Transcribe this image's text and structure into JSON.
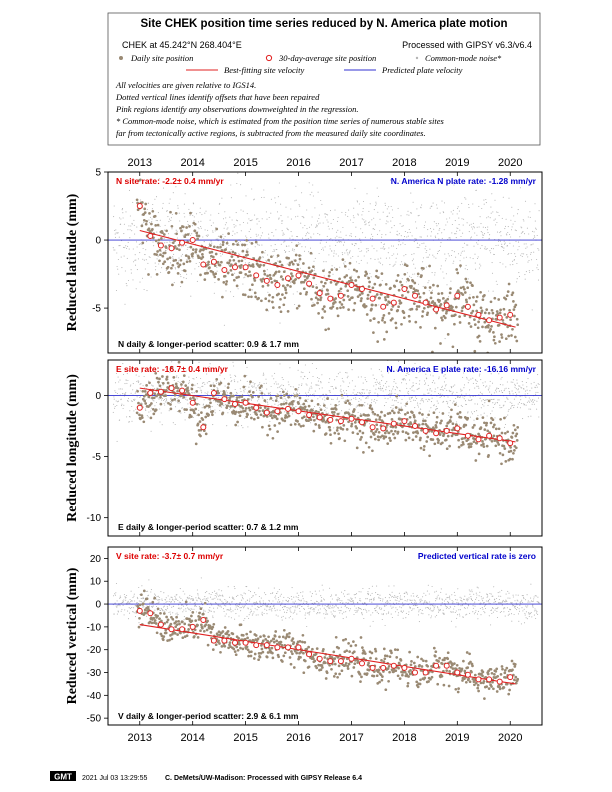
{
  "header": {
    "title": "Site CHEK position time series reduced by N. America plate motion",
    "site_coords": "CHEK at 45.242°N 268.404°E",
    "processing": "Processed with GIPSY v6.3/v6.4",
    "legend": {
      "daily": "Daily site position",
      "avg30": "30-day-average site position",
      "cmn": "Common-mode noise*",
      "fit": "Best-fitting site velocity",
      "pred": "Predicted plate velocity"
    },
    "notes": [
      "All velocities are given relative to IGS14.",
      "Dotted vertical lines identify offsets that have been repaired",
      "Pink regions identify any observations downweighted in the regression.",
      "* Common-mode noise, which is estimated from the position time series of numerous stable sites",
      "far from tectonically active regions, is subtracted from the measured daily site coordinates."
    ]
  },
  "colors": {
    "daily": "#9a8a74",
    "cmn": "#b4b4b4",
    "fit": "#e02020",
    "pred": "#3030d0",
    "site_rate_text": "#dd0000",
    "plate_rate_text": "#0000cc"
  },
  "footer": {
    "logo": "GMT",
    "timestamp": "2021 Jul 03 13:29:55",
    "credit": "C. DeMets/UW-Madison: Processed with GIPSY Release 6.4"
  },
  "chart_data": [
    {
      "type": "scatter",
      "component": "north",
      "ylabel": "Reduced latitude (mm)",
      "xlim": [
        2012.4,
        2020.6
      ],
      "ylim": [
        -8.3,
        5
      ],
      "yticks": [
        -5,
        0,
        5
      ],
      "xticks": [
        2013,
        2014,
        2015,
        2016,
        2017,
        2018,
        2019,
        2020
      ],
      "site_rate_label": "N site rate:  -2.2± 0.4 mm/yr",
      "plate_rate_label": "N. America N plate rate:  -1.28 mm/yr",
      "scatter_label": "N daily & longer-period scatter:   0.9 &   1.7 mm",
      "fit_line": {
        "x": [
          2013.0,
          2020.1
        ],
        "y": [
          0.7,
          -6.4
        ]
      },
      "predicted_line_y": 0,
      "avg30": {
        "x": [
          2013.0,
          2013.2,
          2013.4,
          2013.6,
          2013.8,
          2014.0,
          2014.2,
          2014.4,
          2014.6,
          2014.8,
          2015.0,
          2015.2,
          2015.4,
          2015.6,
          2015.8,
          2016.0,
          2016.2,
          2016.4,
          2016.6,
          2016.8,
          2017.0,
          2017.2,
          2017.4,
          2017.6,
          2017.8,
          2018.0,
          2018.2,
          2018.4,
          2018.6,
          2018.8,
          2019.0,
          2019.2,
          2019.4,
          2019.6,
          2019.8,
          2020.0
        ],
        "y": [
          2.5,
          0.3,
          -0.4,
          -0.6,
          -0.2,
          0.0,
          -1.8,
          -1.6,
          -2.2,
          -2.0,
          -2.0,
          -2.6,
          -3.0,
          -3.3,
          -2.8,
          -2.6,
          -3.2,
          -3.9,
          -4.3,
          -4.1,
          -3.3,
          -3.6,
          -4.3,
          -4.9,
          -4.6,
          -3.6,
          -4.1,
          -4.6,
          -5.1,
          -4.8,
          -4.1,
          -4.9,
          -5.5,
          -5.9,
          -5.7,
          -5.5
        ]
      },
      "daily_spread": 1.1,
      "cmn_spread": 1.8
    },
    {
      "type": "scatter",
      "component": "east",
      "ylabel": "Reduced longitude (mm)",
      "xlim": [
        2012.4,
        2020.6
      ],
      "ylim": [
        -11.5,
        2.9
      ],
      "yticks": [
        -10,
        -5,
        0
      ],
      "xticks": [
        2013,
        2014,
        2015,
        2016,
        2017,
        2018,
        2019,
        2020
      ],
      "site_rate_label": "E site rate:  -16.7± 0.4 mm/yr",
      "plate_rate_label": "N. America E plate rate:  -16.16 mm/yr",
      "scatter_label": "E daily & longer-period scatter:   0.7 &   1.2 mm",
      "fit_line": {
        "x": [
          2013.0,
          2020.1
        ],
        "y": [
          0.6,
          -3.8
        ]
      },
      "predicted_line_y": 0,
      "avg30": {
        "x": [
          2013.0,
          2013.2,
          2013.4,
          2013.6,
          2013.8,
          2014.0,
          2014.2,
          2014.4,
          2014.6,
          2014.8,
          2015.0,
          2015.2,
          2015.4,
          2015.6,
          2015.8,
          2016.0,
          2016.2,
          2016.4,
          2016.6,
          2016.8,
          2017.0,
          2017.2,
          2017.4,
          2017.6,
          2017.8,
          2018.0,
          2018.2,
          2018.4,
          2018.6,
          2018.8,
          2019.0,
          2019.2,
          2019.4,
          2019.6,
          2019.8,
          2020.0
        ],
        "y": [
          -1.0,
          0.2,
          0.3,
          0.6,
          0.4,
          -0.6,
          -2.6,
          0.2,
          -0.3,
          -0.7,
          -0.6,
          -1.0,
          -1.4,
          -1.3,
          -1.1,
          -1.3,
          -1.6,
          -1.8,
          -2.0,
          -2.1,
          -1.9,
          -2.2,
          -2.6,
          -2.7,
          -2.3,
          -2.1,
          -2.5,
          -2.9,
          -3.1,
          -2.9,
          -2.7,
          -3.3,
          -3.6,
          -3.3,
          -3.5,
          -3.9
        ]
      },
      "daily_spread": 0.8,
      "cmn_spread": 1.0
    },
    {
      "type": "scatter",
      "component": "vertical",
      "ylabel": "Reduced vertical (mm)",
      "xlim": [
        2012.4,
        2020.6
      ],
      "ylim": [
        -53,
        25
      ],
      "yticks": [
        -50,
        -40,
        -30,
        -20,
        -10,
        0,
        10,
        20
      ],
      "xticks": [
        2013,
        2014,
        2015,
        2016,
        2017,
        2018,
        2019,
        2020
      ],
      "site_rate_label": "V site rate:  -3.7± 0.7 mm/yr",
      "plate_rate_label": "Predicted vertical rate is zero",
      "scatter_label": "V daily & longer-period scatter:   2.9 &   6.1 mm",
      "fit_line": {
        "x": [
          2013.0,
          2020.1
        ],
        "y": [
          -9.0,
          -35.0
        ]
      },
      "predicted_line_y": 0,
      "avg30": {
        "x": [
          2013.0,
          2013.2,
          2013.4,
          2013.6,
          2013.8,
          2014.0,
          2014.2,
          2014.4,
          2014.6,
          2014.8,
          2015.0,
          2015.2,
          2015.4,
          2015.6,
          2015.8,
          2016.0,
          2016.2,
          2016.4,
          2016.6,
          2016.8,
          2017.0,
          2017.2,
          2017.4,
          2017.6,
          2017.8,
          2018.0,
          2018.2,
          2018.4,
          2018.6,
          2018.8,
          2019.0,
          2019.2,
          2019.4,
          2019.6,
          2019.8,
          2020.0
        ],
        "y": [
          -3.0,
          -4.0,
          -9.0,
          -11.0,
          -11.0,
          -10.0,
          -7.0,
          -16.0,
          -16.0,
          -17.0,
          -17.0,
          -18.0,
          -18.0,
          -19.0,
          -19.0,
          -19.0,
          -22.0,
          -24.0,
          -25.0,
          -25.0,
          -24.0,
          -26.0,
          -28.0,
          -28.0,
          -27.0,
          -28.0,
          -30.0,
          -30.0,
          -27.0,
          -27.0,
          -30.0,
          -31.0,
          -33.0,
          -33.0,
          -34.0,
          -32.0
        ]
      },
      "daily_spread": 3.5,
      "cmn_spread": 3.2
    }
  ]
}
